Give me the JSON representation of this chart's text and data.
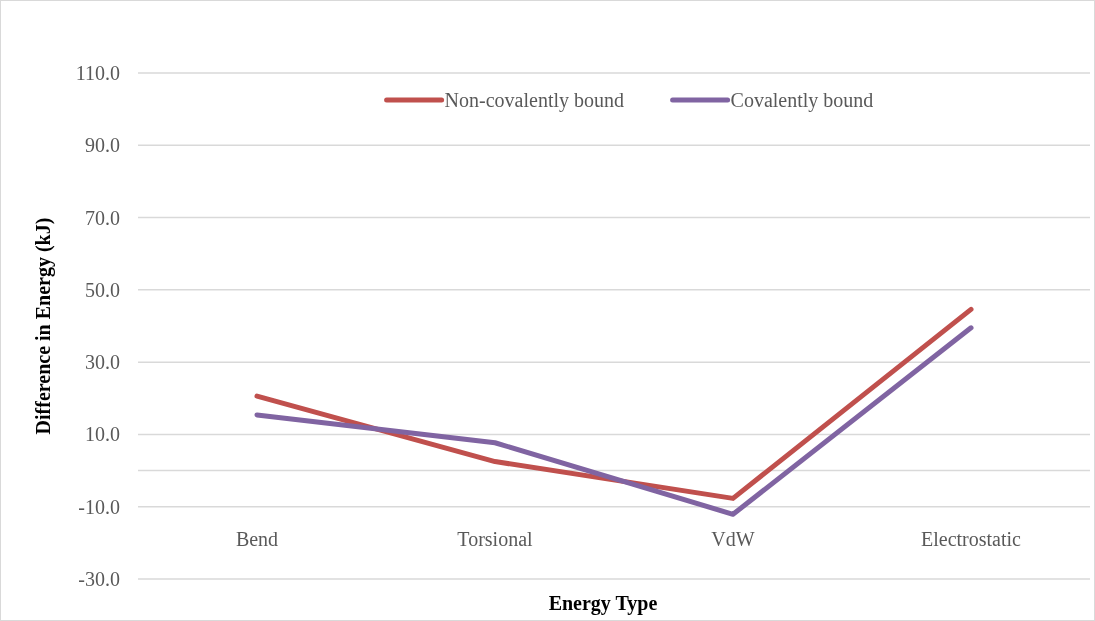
{
  "chart_data": {
    "type": "line",
    "xlabel": "Energy Type",
    "ylabel": "Difference in Energy (kJ)",
    "categories": [
      "Bend",
      "Torsional",
      "VdW",
      "Electrostatic"
    ],
    "series": [
      {
        "name": "Non-covalently bound",
        "color": "#c0504d",
        "values": [
          20.6,
          2.5,
          -7.7,
          44.6
        ]
      },
      {
        "name": "Covalently bound",
        "color": "#8064a2",
        "values": [
          15.4,
          7.7,
          -12.1,
          39.5
        ]
      }
    ],
    "ylim": [
      -30,
      110
    ],
    "yticks": [
      {
        "value": -30,
        "label": "-30.0"
      },
      {
        "value": -10,
        "label": "-10.0"
      },
      {
        "value": 10,
        "label": "10.0"
      },
      {
        "value": 30,
        "label": "30.0"
      },
      {
        "value": 50,
        "label": "50.0"
      },
      {
        "value": 70,
        "label": "70.0"
      },
      {
        "value": 90,
        "label": "90.0"
      },
      {
        "value": 110,
        "label": "110.0"
      }
    ],
    "grid": "y",
    "legend": "top",
    "marker": "none",
    "line_style": "solid"
  }
}
